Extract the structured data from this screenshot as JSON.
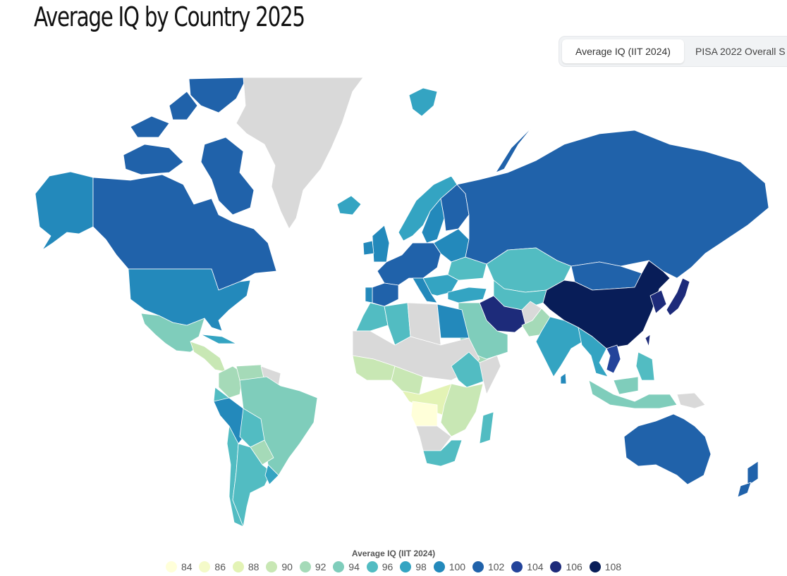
{
  "title": "Average IQ by Country 2025",
  "tabs": [
    {
      "label": "Average IQ (IIT 2024)",
      "active": true
    },
    {
      "label": "PISA 2022 Overall S",
      "active": false
    }
  ],
  "legend": {
    "title": "Average IQ (IIT 2024)",
    "items": [
      {
        "label": "84",
        "color": "#ffffd9"
      },
      {
        "label": "86",
        "color": "#f4fac9"
      },
      {
        "label": "88",
        "color": "#e3f3b5"
      },
      {
        "label": "90",
        "color": "#c8e7b4"
      },
      {
        "label": "92",
        "color": "#a5dab8"
      },
      {
        "label": "94",
        "color": "#7fcdbb"
      },
      {
        "label": "96",
        "color": "#52bcc2"
      },
      {
        "label": "98",
        "color": "#34a4c2"
      },
      {
        "label": "100",
        "color": "#2389bb"
      },
      {
        "label": "102",
        "color": "#2062aa"
      },
      {
        "label": "104",
        "color": "#23439a"
      },
      {
        "label": "106",
        "color": "#1d2b7a"
      },
      {
        "label": "108",
        "color": "#081d58"
      }
    ]
  },
  "map": {
    "no_data_color": "#d9d9d9",
    "regions": [
      {
        "name": "Alaska",
        "color": "#2389bb"
      },
      {
        "name": "Canada",
        "color": "#2062aa"
      },
      {
        "name": "Greenland",
        "color": "#d9d9d9"
      },
      {
        "name": "United States",
        "color": "#2389bb"
      },
      {
        "name": "Mexico",
        "color": "#7fcdbb"
      },
      {
        "name": "Central America",
        "color": "#c8e7b4"
      },
      {
        "name": "Cuba",
        "color": "#34a4c2"
      },
      {
        "name": "Colombia",
        "color": "#a5dab8"
      },
      {
        "name": "Venezuela",
        "color": "#a5dab8"
      },
      {
        "name": "Guianas",
        "color": "#d9d9d9"
      },
      {
        "name": "Ecuador",
        "color": "#52bcc2"
      },
      {
        "name": "Peru",
        "color": "#2389bb"
      },
      {
        "name": "Brazil",
        "color": "#7fcdbb"
      },
      {
        "name": "Bolivia",
        "color": "#52bcc2"
      },
      {
        "name": "Paraguay",
        "color": "#a5dab8"
      },
      {
        "name": "Chile",
        "color": "#52bcc2"
      },
      {
        "name": "Argentina",
        "color": "#52bcc2"
      },
      {
        "name": "Uruguay",
        "color": "#34a4c2"
      },
      {
        "name": "Iceland",
        "color": "#34a4c2"
      },
      {
        "name": "Svalbard",
        "color": "#34a4c2"
      },
      {
        "name": "United Kingdom",
        "color": "#2389bb"
      },
      {
        "name": "Ireland",
        "color": "#2389bb"
      },
      {
        "name": "Norway",
        "color": "#34a4c2"
      },
      {
        "name": "Sweden",
        "color": "#2389bb"
      },
      {
        "name": "Finland",
        "color": "#2062aa"
      },
      {
        "name": "Western Europe",
        "color": "#2062aa"
      },
      {
        "name": "Spain",
        "color": "#2062aa"
      },
      {
        "name": "Portugal",
        "color": "#2389bb"
      },
      {
        "name": "Italy",
        "color": "#2389bb"
      },
      {
        "name": "Eastern Europe",
        "color": "#2389bb"
      },
      {
        "name": "Ukraine",
        "color": "#52bcc2"
      },
      {
        "name": "Balkans",
        "color": "#34a4c2"
      },
      {
        "name": "Turkey",
        "color": "#34a4c2"
      },
      {
        "name": "Russia",
        "color": "#2062aa"
      },
      {
        "name": "Novaya Zemlya",
        "color": "#2062aa"
      },
      {
        "name": "Kazakhstan",
        "color": "#52bcc2"
      },
      {
        "name": "Central Asia",
        "color": "#52bcc2"
      },
      {
        "name": "Mongolia",
        "color": "#2062aa"
      },
      {
        "name": "China",
        "color": "#081d58"
      },
      {
        "name": "Korea",
        "color": "#1d2b7a"
      },
      {
        "name": "Japan",
        "color": "#1d2b7a"
      },
      {
        "name": "Taiwan",
        "color": "#1d2b7a"
      },
      {
        "name": "Iran",
        "color": "#1d2b7a"
      },
      {
        "name": "Afghanistan",
        "color": "#d9d9d9"
      },
      {
        "name": "Pakistan",
        "color": "#a5dab8"
      },
      {
        "name": "India",
        "color": "#34a4c2"
      },
      {
        "name": "Sri Lanka",
        "color": "#2389bb"
      },
      {
        "name": "Southeast Asia",
        "color": "#34a4c2"
      },
      {
        "name": "Vietnam",
        "color": "#23439a"
      },
      {
        "name": "Philippines",
        "color": "#52bcc2"
      },
      {
        "name": "Indonesia",
        "color": "#7fcdbb"
      },
      {
        "name": "Papua New Guinea",
        "color": "#d9d9d9"
      },
      {
        "name": "Saudi Arabia",
        "color": "#7fcdbb"
      },
      {
        "name": "Yemen",
        "color": "#a5dab8"
      },
      {
        "name": "Morocco",
        "color": "#52bcc2"
      },
      {
        "name": "Algeria",
        "color": "#52bcc2"
      },
      {
        "name": "Libya",
        "color": "#d9d9d9"
      },
      {
        "name": "Egypt",
        "color": "#2389bb"
      },
      {
        "name": "Sahel",
        "color": "#d9d9d9"
      },
      {
        "name": "West Africa",
        "color": "#c8e7b4"
      },
      {
        "name": "Nigeria",
        "color": "#c8e7b4"
      },
      {
        "name": "Ethiopia",
        "color": "#52bcc2"
      },
      {
        "name": "Somalia",
        "color": "#d9d9d9"
      },
      {
        "name": "Central Africa",
        "color": "#e3f3b5"
      },
      {
        "name": "Angola",
        "color": "#ffffd9"
      },
      {
        "name": "East Africa",
        "color": "#c8e7b4"
      },
      {
        "name": "Southern Africa",
        "color": "#d9d9d9"
      },
      {
        "name": "South Africa",
        "color": "#52bcc2"
      },
      {
        "name": "Madagascar",
        "color": "#52bcc2"
      },
      {
        "name": "Australia",
        "color": "#2062aa"
      },
      {
        "name": "New Zealand",
        "color": "#2062aa"
      }
    ]
  }
}
